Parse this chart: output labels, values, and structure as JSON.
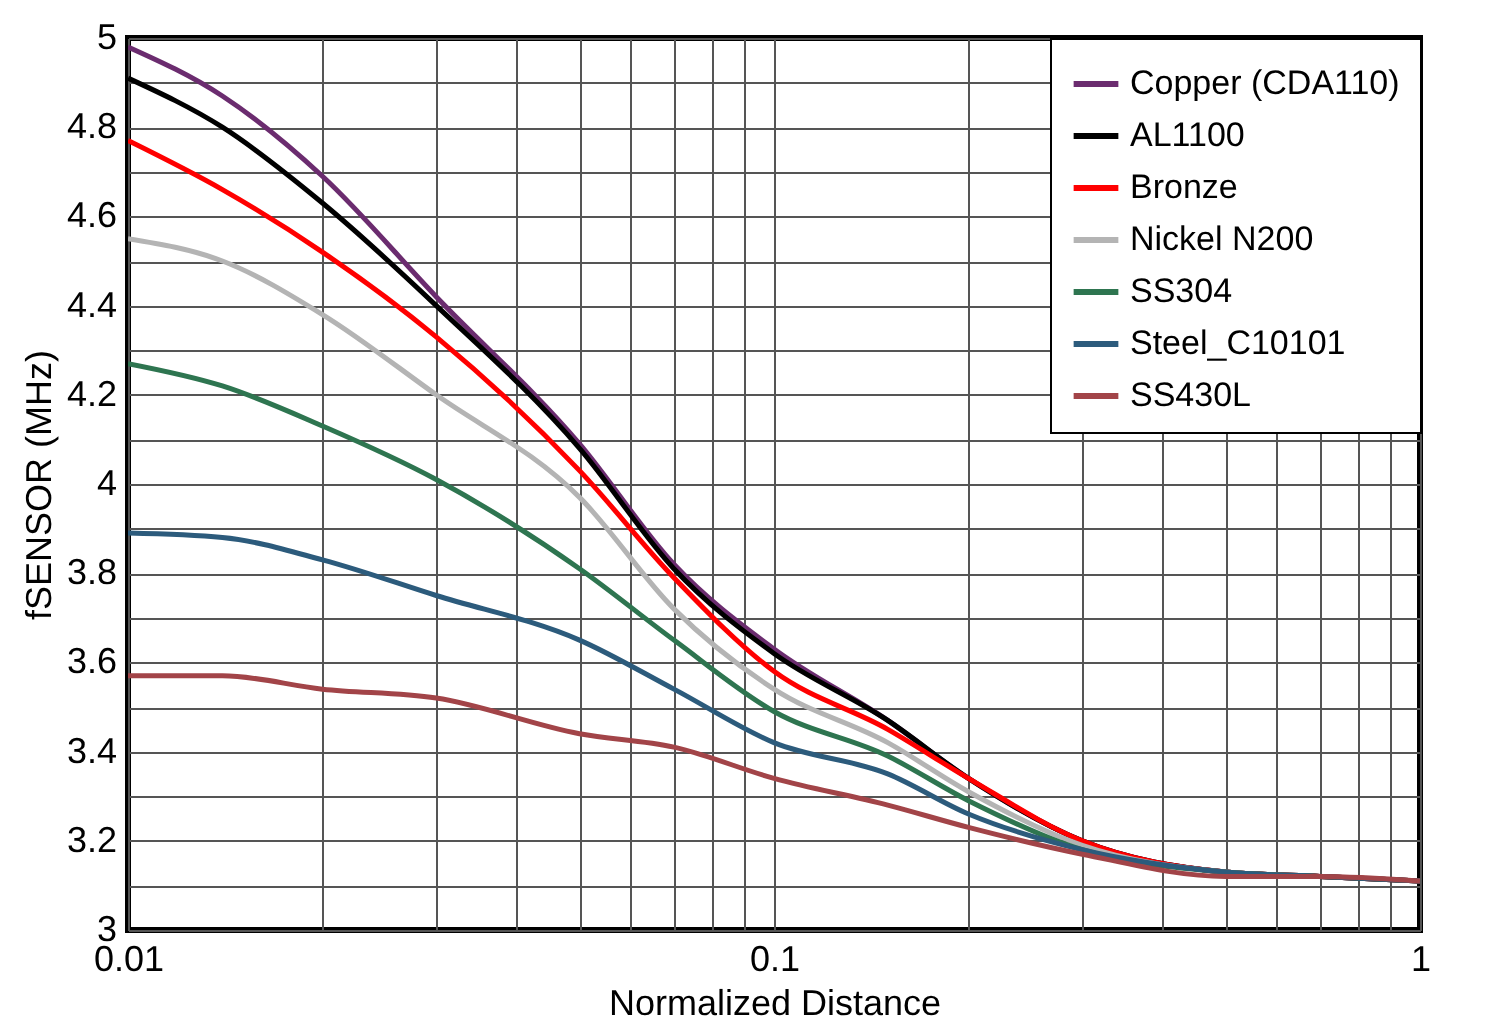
{
  "chart_data": {
    "type": "line",
    "xlabel": "Normalized Distance",
    "ylabel": "fSENSOR (MHz)",
    "x": [
      0.01,
      0.014,
      0.02,
      0.03,
      0.05,
      0.07,
      0.1,
      0.15,
      0.2,
      0.3,
      0.5,
      0.7,
      1
    ],
    "series": [
      {
        "name": "Copper (CDA110)",
        "color": "#6b2c6f",
        "values": [
          4.98,
          4.87,
          4.69,
          4.42,
          4.09,
          3.82,
          3.63,
          3.47,
          3.34,
          3.2,
          3.13,
          3.12,
          3.11
        ]
      },
      {
        "name": "AL1100",
        "color": "#000000",
        "values": [
          4.91,
          4.8,
          4.63,
          4.4,
          4.08,
          3.81,
          3.62,
          3.47,
          3.34,
          3.2,
          3.13,
          3.12,
          3.11
        ]
      },
      {
        "name": "Bronze",
        "color": "#ff0000",
        "values": [
          4.77,
          4.66,
          4.52,
          4.33,
          4.03,
          3.79,
          3.58,
          3.45,
          3.34,
          3.2,
          3.13,
          3.12,
          3.11
        ]
      },
      {
        "name": "Nickel N200",
        "color": "#b4b4b4",
        "values": [
          4.55,
          4.5,
          4.38,
          4.2,
          3.97,
          3.72,
          3.54,
          3.42,
          3.31,
          3.19,
          3.13,
          3.12,
          null
        ]
      },
      {
        "name": "SS304",
        "color": "#2e7550",
        "values": [
          4.27,
          4.22,
          4.13,
          4.01,
          3.81,
          3.65,
          3.49,
          3.39,
          3.29,
          3.18,
          3.13,
          3.12,
          3.11
        ]
      },
      {
        "name": "Steel_C10101",
        "color": "#2c5b7c",
        "values": [
          3.89,
          3.88,
          3.83,
          3.75,
          3.65,
          3.54,
          3.42,
          3.35,
          3.26,
          3.18,
          3.13,
          3.12,
          3.11
        ]
      },
      {
        "name": "SS430L",
        "color": "#a24448",
        "values": [
          3.57,
          3.57,
          3.54,
          3.52,
          3.44,
          3.41,
          3.34,
          3.28,
          3.23,
          3.17,
          3.12,
          3.12,
          3.11
        ]
      }
    ],
    "log": "x",
    "xlim": [
      0.01,
      1
    ],
    "xticks": [
      0.01,
      {
        "value": 0.02,
        "label": null
      },
      {
        "value": 0.03,
        "label": null
      },
      {
        "value": 0.04,
        "label": null
      },
      {
        "value": 0.05,
        "label": null
      },
      {
        "value": 0.06,
        "label": null
      },
      {
        "value": 0.07,
        "label": null
      },
      {
        "value": 0.08,
        "label": null
      },
      {
        "value": 0.09,
        "label": null
      },
      0.1,
      {
        "value": 0.2,
        "label": null
      },
      {
        "value": 0.3,
        "label": null
      },
      {
        "value": 0.4,
        "label": null
      },
      {
        "value": 0.5,
        "label": null
      },
      {
        "value": 0.6,
        "label": null
      },
      {
        "value": 0.7,
        "label": null
      },
      {
        "value": 0.8,
        "label": null
      },
      {
        "value": 0.9,
        "label": null
      },
      1
    ],
    "ylim": [
      3,
      5
    ],
    "yticks": [
      3,
      {
        "value": 3.1,
        "label": null
      },
      3.2,
      {
        "value": 3.3,
        "label": null
      },
      3.4,
      {
        "value": 3.5,
        "label": null
      },
      3.6,
      {
        "value": 3.7,
        "label": null
      },
      3.8,
      {
        "value": 3.9,
        "label": null
      },
      4,
      {
        "value": 4.1,
        "label": null
      },
      4.2,
      {
        "value": 4.3,
        "label": null
      },
      4.4,
      {
        "value": 4.5,
        "label": null
      },
      4.6,
      {
        "value": 4.7,
        "label": null
      },
      4.8,
      {
        "value": 4.9,
        "label": null
      },
      5
    ],
    "grid": true,
    "legend": "top right",
    "marker": "none",
    "line_style": "solid"
  }
}
